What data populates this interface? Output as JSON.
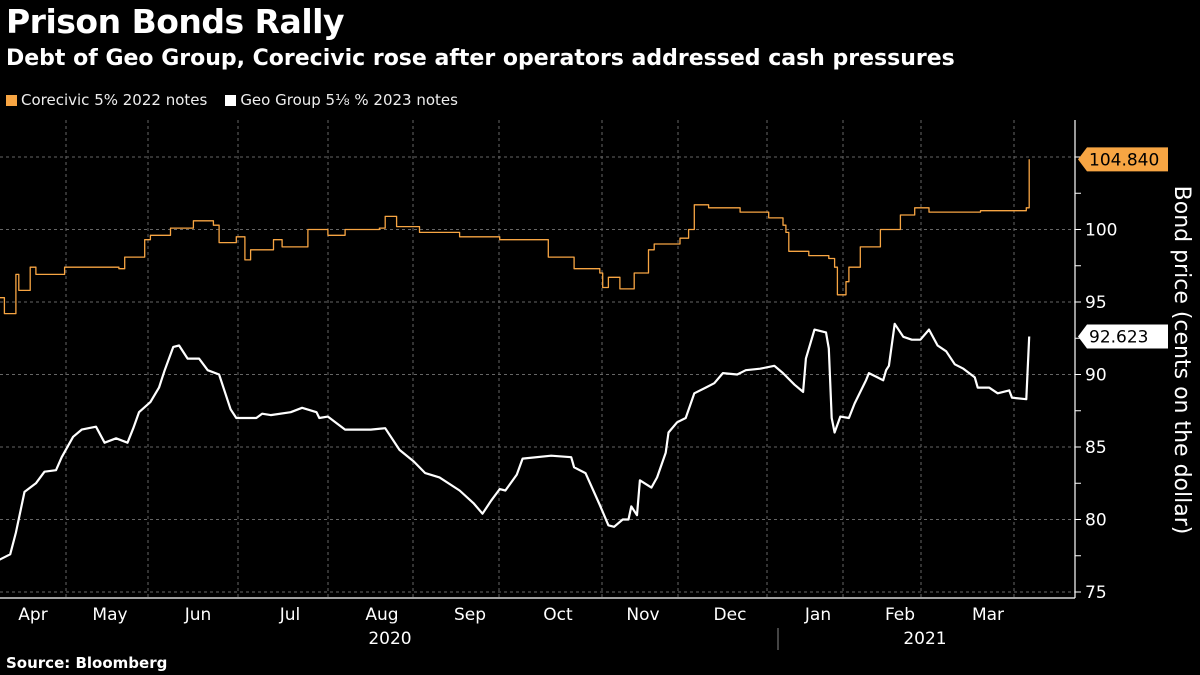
{
  "header": {
    "title": "Prison Bonds Rally",
    "subtitle": "Debt of Geo Group, Corecivic rose after operators addressed cash pressures"
  },
  "footer": {
    "source": "Source: Bloomberg"
  },
  "colors": {
    "background": "#000000",
    "corecivic": "#f7a543",
    "geo": "#ffffff",
    "grid": "#666666"
  },
  "chart_data": {
    "type": "line",
    "title": "Prison Bonds Rally",
    "ylabel": "Bond price (cents on the dollar)",
    "ylim": [
      75,
      105
    ],
    "yticks": [
      75,
      80,
      85,
      90,
      95,
      100
    ],
    "xlim": [
      "2020-04-01",
      "2021-04-14"
    ],
    "x_month_labels": [
      "Apr",
      "May",
      "Jun",
      "Jul",
      "Aug",
      "Sep",
      "Oct",
      "Nov",
      "Dec",
      "Jan",
      "Feb",
      "Mar"
    ],
    "x_year_labels": [
      "2020",
      "2021"
    ],
    "grid": true,
    "legend_placement": "top-left",
    "y_axis_side": "right",
    "series": [
      {
        "name": "Corecivic 5% 2022 notes",
        "color": "#f7a543",
        "style": "step",
        "last_value_label": "104.840",
        "points": [
          [
            "2020-04-03",
            95.3
          ],
          [
            "2020-04-05",
            94.2
          ],
          [
            "2020-04-08",
            94.2
          ],
          [
            "2020-04-09",
            96.9
          ],
          [
            "2020-04-10",
            95.8
          ],
          [
            "2020-04-14",
            97.4
          ],
          [
            "2020-04-16",
            96.9
          ],
          [
            "2020-04-26",
            97.4
          ],
          [
            "2020-05-15",
            97.3
          ],
          [
            "2020-05-17",
            98.1
          ],
          [
            "2020-05-24",
            99.3
          ],
          [
            "2020-05-26",
            99.6
          ],
          [
            "2020-06-02",
            100.1
          ],
          [
            "2020-06-10",
            100.6
          ],
          [
            "2020-06-17",
            100.3
          ],
          [
            "2020-06-19",
            99.1
          ],
          [
            "2020-06-25",
            99.5
          ],
          [
            "2020-06-28",
            97.9
          ],
          [
            "2020-06-30",
            98.6
          ],
          [
            "2020-07-08",
            99.3
          ],
          [
            "2020-07-11",
            98.8
          ],
          [
            "2020-07-20",
            100.0
          ],
          [
            "2020-07-27",
            99.6
          ],
          [
            "2020-08-02",
            100.0
          ],
          [
            "2020-08-14",
            100.1
          ],
          [
            "2020-08-16",
            100.9
          ],
          [
            "2020-08-20",
            100.2
          ],
          [
            "2020-08-28",
            99.8
          ],
          [
            "2020-09-11",
            99.5
          ],
          [
            "2020-09-25",
            99.3
          ],
          [
            "2020-10-05",
            99.3
          ],
          [
            "2020-10-12",
            98.1
          ],
          [
            "2020-10-21",
            97.3
          ],
          [
            "2020-10-30",
            97.0
          ],
          [
            "2020-10-31",
            96.0
          ],
          [
            "2020-11-02",
            96.7
          ],
          [
            "2020-11-06",
            95.9
          ],
          [
            "2020-11-11",
            97.0
          ],
          [
            "2020-11-16",
            98.6
          ],
          [
            "2020-11-18",
            99.0
          ],
          [
            "2020-11-27",
            99.4
          ],
          [
            "2020-11-30",
            100.0
          ],
          [
            "2020-12-02",
            101.7
          ],
          [
            "2020-12-07",
            101.5
          ],
          [
            "2020-12-18",
            101.2
          ],
          [
            "2020-12-28",
            100.8
          ],
          [
            "2021-01-02",
            100.3
          ],
          [
            "2021-01-03",
            99.8
          ],
          [
            "2021-01-04",
            98.5
          ],
          [
            "2021-01-11",
            98.2
          ],
          [
            "2021-01-18",
            98.0
          ],
          [
            "2021-01-20",
            97.4
          ],
          [
            "2021-01-21",
            95.5
          ],
          [
            "2021-01-24",
            96.4
          ],
          [
            "2021-01-25",
            97.4
          ],
          [
            "2021-01-29",
            98.8
          ],
          [
            "2021-02-05",
            100.0
          ],
          [
            "2021-02-12",
            101.0
          ],
          [
            "2021-02-17",
            101.5
          ],
          [
            "2021-02-22",
            101.2
          ],
          [
            "2021-03-12",
            101.3
          ],
          [
            "2021-03-28",
            101.5
          ],
          [
            "2021-03-29",
            104.84
          ]
        ]
      },
      {
        "name": "Geo Group 5 1/8 % 2023 notes",
        "color": "#ffffff",
        "style": "line",
        "last_value_label": "92.623",
        "points": [
          [
            "2020-04-03",
            77.2
          ],
          [
            "2020-04-07",
            77.6
          ],
          [
            "2020-04-09",
            79.1
          ],
          [
            "2020-04-12",
            81.9
          ],
          [
            "2020-04-16",
            82.5
          ],
          [
            "2020-04-19",
            83.3
          ],
          [
            "2020-04-23",
            83.4
          ],
          [
            "2020-04-25",
            84.3
          ],
          [
            "2020-04-29",
            85.7
          ],
          [
            "2020-05-02",
            86.2
          ],
          [
            "2020-05-07",
            86.4
          ],
          [
            "2020-05-10",
            85.3
          ],
          [
            "2020-05-14",
            85.6
          ],
          [
            "2020-05-18",
            85.3
          ],
          [
            "2020-05-20",
            86.3
          ],
          [
            "2020-05-22",
            87.4
          ],
          [
            "2020-05-26",
            88.1
          ],
          [
            "2020-05-29",
            89.1
          ],
          [
            "2020-05-31",
            90.3
          ],
          [
            "2020-06-03",
            91.9
          ],
          [
            "2020-06-05",
            92.0
          ],
          [
            "2020-06-08",
            91.1
          ],
          [
            "2020-06-12",
            91.1
          ],
          [
            "2020-06-15",
            90.3
          ],
          [
            "2020-06-19",
            90.0
          ],
          [
            "2020-06-23",
            87.6
          ],
          [
            "2020-06-25",
            87.0
          ],
          [
            "2020-07-02",
            87.0
          ],
          [
            "2020-07-04",
            87.3
          ],
          [
            "2020-07-07",
            87.2
          ],
          [
            "2020-07-14",
            87.4
          ],
          [
            "2020-07-18",
            87.7
          ],
          [
            "2020-07-23",
            87.4
          ],
          [
            "2020-07-24",
            87.0
          ],
          [
            "2020-07-27",
            87.1
          ],
          [
            "2020-08-02",
            86.2
          ],
          [
            "2020-08-11",
            86.2
          ],
          [
            "2020-08-16",
            86.3
          ],
          [
            "2020-08-21",
            84.8
          ],
          [
            "2020-08-26",
            84.0
          ],
          [
            "2020-08-30",
            83.2
          ],
          [
            "2020-09-04",
            82.9
          ],
          [
            "2020-09-11",
            82.0
          ],
          [
            "2020-09-16",
            81.1
          ],
          [
            "2020-09-19",
            80.4
          ],
          [
            "2020-09-22",
            81.3
          ],
          [
            "2020-09-25",
            82.1
          ],
          [
            "2020-09-27",
            82.0
          ],
          [
            "2020-10-01",
            83.1
          ],
          [
            "2020-10-03",
            84.2
          ],
          [
            "2020-10-13",
            84.4
          ],
          [
            "2020-10-20",
            84.3
          ],
          [
            "2020-10-21",
            83.6
          ],
          [
            "2020-10-25",
            83.2
          ],
          [
            "2020-10-30",
            81.0
          ],
          [
            "2020-11-02",
            79.6
          ],
          [
            "2020-11-04",
            79.5
          ],
          [
            "2020-11-07",
            80.0
          ],
          [
            "2020-11-09",
            80.0
          ],
          [
            "2020-11-10",
            80.9
          ],
          [
            "2020-11-12",
            80.3
          ],
          [
            "2020-11-13",
            82.7
          ],
          [
            "2020-11-17",
            82.2
          ],
          [
            "2020-11-19",
            82.9
          ],
          [
            "2020-11-22",
            84.6
          ],
          [
            "2020-11-23",
            86.0
          ],
          [
            "2020-11-26",
            86.7
          ],
          [
            "2020-11-29",
            87.0
          ],
          [
            "2020-12-02",
            88.7
          ],
          [
            "2020-12-06",
            89.1
          ],
          [
            "2020-12-09",
            89.4
          ],
          [
            "2020-12-12",
            90.1
          ],
          [
            "2020-12-17",
            90.0
          ],
          [
            "2020-12-20",
            90.3
          ],
          [
            "2020-12-25",
            90.4
          ],
          [
            "2020-12-30",
            90.6
          ],
          [
            "2021-01-02",
            90.1
          ],
          [
            "2021-01-06",
            89.3
          ],
          [
            "2021-01-09",
            88.8
          ],
          [
            "2021-01-10",
            91.1
          ],
          [
            "2021-01-13",
            93.1
          ],
          [
            "2021-01-17",
            92.9
          ],
          [
            "2021-01-18",
            91.8
          ],
          [
            "2021-01-19",
            87.0
          ],
          [
            "2021-01-20",
            86.0
          ],
          [
            "2021-01-22",
            87.1
          ],
          [
            "2021-01-25",
            87.0
          ],
          [
            "2021-01-27",
            88.0
          ],
          [
            "2021-01-31",
            89.6
          ],
          [
            "2021-02-01",
            90.1
          ],
          [
            "2021-02-04",
            89.8
          ],
          [
            "2021-02-06",
            89.6
          ],
          [
            "2021-02-07",
            90.3
          ],
          [
            "2021-02-08",
            90.6
          ],
          [
            "2021-02-10",
            93.5
          ],
          [
            "2021-02-13",
            92.6
          ],
          [
            "2021-02-16",
            92.4
          ],
          [
            "2021-02-19",
            92.4
          ],
          [
            "2021-02-22",
            93.1
          ],
          [
            "2021-02-25",
            92.0
          ],
          [
            "2021-02-28",
            91.6
          ],
          [
            "2021-03-03",
            90.7
          ],
          [
            "2021-03-06",
            90.4
          ],
          [
            "2021-03-10",
            89.8
          ],
          [
            "2021-03-11",
            89.1
          ],
          [
            "2021-03-15",
            89.1
          ],
          [
            "2021-03-18",
            88.7
          ],
          [
            "2021-03-22",
            88.9
          ],
          [
            "2021-03-23",
            88.4
          ],
          [
            "2021-03-28",
            88.3
          ],
          [
            "2021-03-29",
            92.623
          ]
        ]
      }
    ]
  },
  "legend": {
    "items": [
      {
        "label": "Corecivic 5% 2022 notes",
        "color": "#f7a543"
      },
      {
        "label": "Geo Group 5⅛ % 2023 notes",
        "color": "#ffffff"
      }
    ]
  }
}
